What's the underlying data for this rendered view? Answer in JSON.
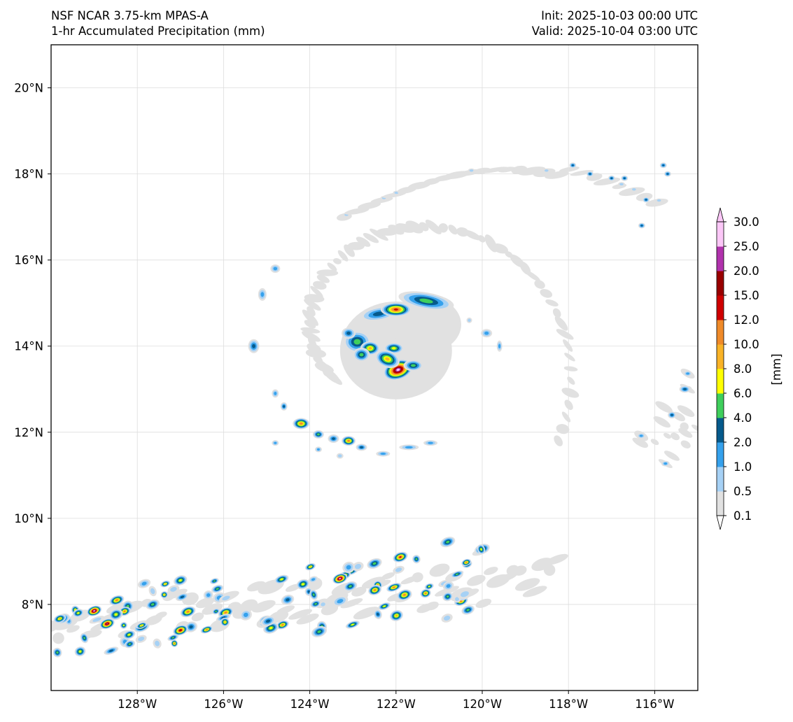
{
  "header": {
    "title_left_1": "NSF NCAR 3.75-km MPAS-A",
    "title_left_2": "1-hr Accumulated Precipitation (mm)",
    "title_right_1": "Init: 2025-10-03 00:00 UTC",
    "title_right_2": "Valid: 2025-10-04 03:00 UTC"
  },
  "map": {
    "lon_range": [
      -130,
      -115
    ],
    "lat_range": [
      6,
      21
    ],
    "lon_ticks": [
      {
        "value": -128,
        "label": "128°W"
      },
      {
        "value": -126,
        "label": "126°W"
      },
      {
        "value": -124,
        "label": "124°W"
      },
      {
        "value": -122,
        "label": "122°W"
      },
      {
        "value": -120,
        "label": "120°W"
      },
      {
        "value": -118,
        "label": "118°W"
      },
      {
        "value": -116,
        "label": "116°W"
      }
    ],
    "lat_ticks": [
      {
        "value": 8,
        "label": "8°N"
      },
      {
        "value": 10,
        "label": "10°N"
      },
      {
        "value": 12,
        "label": "12°N"
      },
      {
        "value": 14,
        "label": "14°N"
      },
      {
        "value": 16,
        "label": "16°N"
      },
      {
        "value": 18,
        "label": "18°N"
      },
      {
        "value": 20,
        "label": "20°N"
      }
    ],
    "hurricane_center": {
      "lon": -122.0,
      "lat": 13.9
    }
  },
  "colorbar": {
    "unit_label": "[mm]",
    "levels": [
      "0.1",
      "0.5",
      "1.0",
      "2.0",
      "4.0",
      "6.0",
      "8.0",
      "10.0",
      "12.0",
      "15.0",
      "20.0",
      "25.0",
      "30.0"
    ],
    "colors": [
      "#e1e1e1",
      "#a6d1f5",
      "#35a1ec",
      "#065a8c",
      "#3fcf5c",
      "#ffff00",
      "#f9b327",
      "#ef8a29",
      "#cf0000",
      "#990000",
      "#b132ad",
      "#fbc7f7"
    ]
  }
}
